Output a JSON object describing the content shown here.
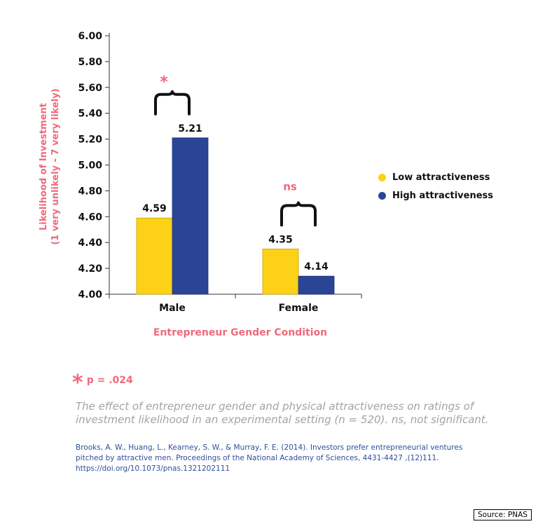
{
  "chart_data": {
    "type": "bar",
    "categories": [
      "Male",
      "Female"
    ],
    "series": [
      {
        "name": "Low attractiveness",
        "color": "#fcd116",
        "values": [
          4.59,
          4.35
        ]
      },
      {
        "name": "High attractiveness",
        "color": "#2b4596",
        "values": [
          5.21,
          4.14
        ]
      }
    ],
    "value_labels": [
      [
        "4.59",
        "4.35"
      ],
      [
        "5.21",
        "4.14"
      ]
    ],
    "yticks": [
      "4.00",
      "4.20",
      "4.40",
      "4.60",
      "4.80",
      "5.00",
      "5.20",
      "5.40",
      "5.60",
      "5.80",
      "6.00"
    ],
    "ylim": [
      4.0,
      6.0
    ],
    "xlabel": "Entrepreneur Gender Condition",
    "ylabel_line1": "Likelihood of Investment",
    "ylabel_line2": "(1 very unlikely - 7 very likely)",
    "significance": [
      "*",
      "ns"
    ],
    "legend_position": "right",
    "grid": false
  },
  "footnote": {
    "star": "*",
    "text": "p = .024"
  },
  "caption": "The effect of entrepreneur gender and physical attractiveness on ratings of investment likelihood in an experimental setting (n = 520). ns, not significant.",
  "citation": [
    "Brooks, A. W., Huang, L., Kearney, S. W., & Murray, F. E. (2014). Investors prefer entrepreneurial ventures",
    "pitched by attractive men. Proceedings of the National Academy of Sciences, 4431-4427 ,(12)111.",
    "https://doi.org/10.1073/pnas.1321202111"
  ],
  "source": "Source: PNAS",
  "colors": {
    "accent": "#ef6a7c",
    "low": "#fcd116",
    "high": "#2b4596",
    "citation": "#2d4f9c",
    "caption": "#a3a3a3"
  }
}
